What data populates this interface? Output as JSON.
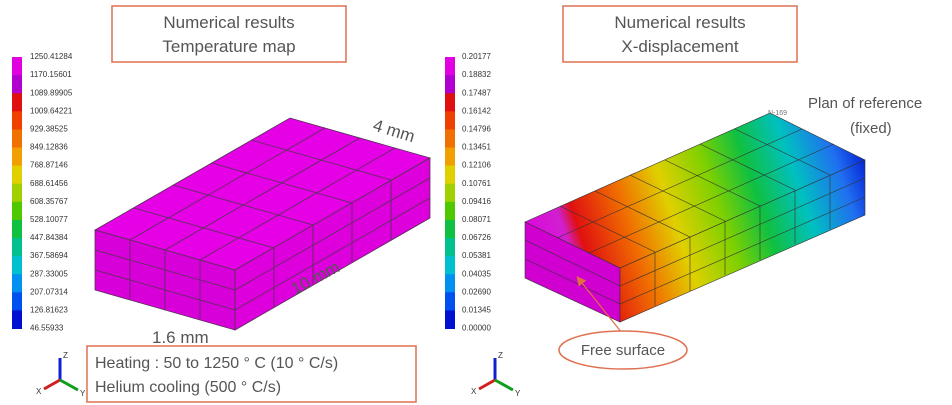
{
  "left": {
    "title": [
      "Numerical results",
      "Temperature map"
    ],
    "legend": [
      "1250.41284",
      "1170.15601",
      "1089.89905",
      "1009.64221",
      "929.38525",
      "849.12836",
      "768.87146",
      "688.61456",
      "608.35767",
      "528.10077",
      "447.84384",
      "367.58694",
      "287.33005",
      "207.07314",
      "126.81623",
      "46.55933"
    ],
    "dimensions": {
      "width": "4 mm",
      "length": "10 mm",
      "height": "1.6 mm"
    },
    "note": [
      "Heating : 50 to 1250 ° C (10 ° C/s)",
      "Helium cooling (500 ° C/s)"
    ],
    "axes": [
      "Z",
      "X",
      "Y"
    ]
  },
  "right": {
    "title": [
      "Numerical results",
      "X-displacement"
    ],
    "legend": [
      "0.20177",
      "0.18832",
      "0.17487",
      "0.16142",
      "0.14796",
      "0.13451",
      "0.12106",
      "0.10761",
      "0.09416",
      "0.08071",
      "0.06726",
      "0.05381",
      "0.04035",
      "0.02690",
      "0.01345",
      "0.00000"
    ],
    "node": "N-169",
    "reference": [
      "Plan of reference",
      "(fixed)"
    ],
    "free_surface": "Free surface",
    "axes": [
      "Z",
      "X",
      "Y"
    ]
  }
}
